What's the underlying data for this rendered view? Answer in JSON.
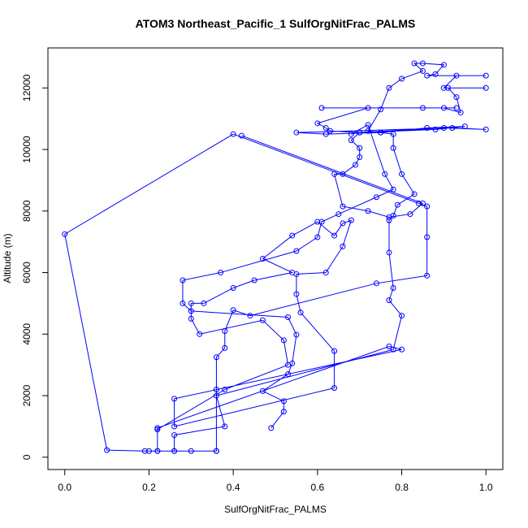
{
  "chart_data": {
    "type": "line",
    "title": "ATOM3 Northeast_Pacific_1 SulfOrgNitFrac_PALMS",
    "xlabel": "SulfOrgNitFrac_PALMS",
    "ylabel": "Altitude (m)",
    "xlim": [
      -0.04,
      1.04
    ],
    "ylim": [
      -400,
      13300
    ],
    "xticks": [
      0.0,
      0.2,
      0.4,
      0.6,
      0.8,
      1.0
    ],
    "xtick_labels": [
      "0.0",
      "0.2",
      "0.4",
      "0.6",
      "0.8",
      "1.0"
    ],
    "yticks": [
      0,
      2000,
      4000,
      6000,
      8000,
      10000,
      12000
    ],
    "ytick_labels": [
      "0",
      "2000",
      "4000",
      "6000",
      "8000",
      "10000",
      "12000"
    ],
    "grid": false,
    "series": [
      {
        "color": "#0000ff",
        "marker": "open-circle",
        "points": [
          [
            0.49,
            950
          ],
          [
            0.52,
            1480
          ],
          [
            0.52,
            1820
          ],
          [
            0.47,
            2150
          ],
          [
            0.53,
            2700
          ],
          [
            0.54,
            3050
          ],
          [
            0.55,
            3980
          ],
          [
            0.53,
            4550
          ],
          [
            0.3,
            4750
          ],
          [
            0.28,
            5000
          ],
          [
            0.28,
            5750
          ],
          [
            0.37,
            6000
          ],
          [
            0.55,
            6700
          ],
          [
            0.6,
            7150
          ],
          [
            0.61,
            7650
          ],
          [
            0.65,
            7900
          ],
          [
            0.74,
            8450
          ],
          [
            0.78,
            8700
          ],
          [
            0.76,
            9200
          ],
          [
            0.72,
            10800
          ],
          [
            0.68,
            10500
          ],
          [
            0.7,
            10550
          ],
          [
            0.9,
            10700
          ],
          [
            1.0,
            10650
          ],
          [
            0.92,
            10700
          ],
          [
            0.55,
            10550
          ],
          [
            0.62,
            10500
          ],
          [
            0.75,
            10550
          ],
          [
            0.86,
            10700
          ],
          [
            0.95,
            10750
          ],
          [
            0.88,
            10650
          ],
          [
            0.7,
            10550
          ],
          [
            0.63,
            10600
          ],
          [
            0.62,
            10700
          ],
          [
            0.6,
            10850
          ],
          [
            0.72,
            11350
          ],
          [
            0.93,
            11350
          ],
          [
            0.61,
            11350
          ],
          [
            0.85,
            11350
          ],
          [
            0.9,
            11350
          ],
          [
            0.94,
            11200
          ],
          [
            0.93,
            11700
          ],
          [
            0.91,
            12000
          ],
          [
            1.0,
            12000
          ],
          [
            0.9,
            12000
          ],
          [
            0.93,
            12400
          ],
          [
            1.0,
            12400
          ],
          [
            0.86,
            12400
          ],
          [
            0.88,
            12450
          ],
          [
            0.9,
            12750
          ],
          [
            0.85,
            12800
          ],
          [
            0.83,
            12800
          ],
          [
            0.85,
            12550
          ],
          [
            0.8,
            12300
          ],
          [
            0.77,
            12000
          ],
          [
            0.75,
            11300
          ],
          [
            0.72,
            10600
          ],
          [
            0.78,
            10500
          ],
          [
            0.78,
            10050
          ],
          [
            0.8,
            9200
          ],
          [
            0.83,
            8550
          ],
          [
            0.79,
            8200
          ],
          [
            0.78,
            7850
          ],
          [
            0.77,
            7700
          ],
          [
            0.77,
            6650
          ],
          [
            0.78,
            5500
          ],
          [
            0.77,
            5100
          ],
          [
            0.8,
            4600
          ],
          [
            0.78,
            3500
          ],
          [
            0.36,
            2000
          ],
          [
            0.38,
            1000
          ],
          [
            0.26,
            720
          ],
          [
            0.26,
            200
          ],
          [
            0.3,
            200
          ],
          [
            0.2,
            200
          ],
          [
            0.19,
            200
          ],
          [
            0.1,
            230
          ],
          [
            0.0,
            7250
          ],
          [
            0.4,
            10500
          ],
          [
            0.84,
            8250
          ],
          [
            0.86,
            8150
          ],
          [
            0.86,
            7150
          ],
          [
            0.86,
            5900
          ],
          [
            0.74,
            5650
          ],
          [
            0.44,
            4600
          ],
          [
            0.4,
            4780
          ],
          [
            0.38,
            4100
          ],
          [
            0.38,
            3550
          ],
          [
            0.36,
            3250
          ],
          [
            0.36,
            2200
          ],
          [
            0.36,
            200
          ],
          [
            0.22,
            200
          ],
          [
            0.22,
            950
          ],
          [
            0.77,
            3600
          ],
          [
            0.8,
            3500
          ],
          [
            0.26,
            1900
          ],
          [
            0.26,
            1000
          ],
          [
            0.64,
            2250
          ],
          [
            0.64,
            3450
          ],
          [
            0.56,
            4700
          ],
          [
            0.55,
            5300
          ],
          [
            0.55,
            5950
          ],
          [
            0.62,
            6000
          ],
          [
            0.66,
            6850
          ],
          [
            0.68,
            7700
          ],
          [
            0.66,
            7600
          ],
          [
            0.64,
            7200
          ],
          [
            0.6,
            7650
          ],
          [
            0.54,
            7200
          ],
          [
            0.47,
            6450
          ],
          [
            0.54,
            6000
          ],
          [
            0.45,
            5750
          ],
          [
            0.4,
            5500
          ],
          [
            0.33,
            5000
          ],
          [
            0.3,
            5000
          ],
          [
            0.3,
            4500
          ],
          [
            0.32,
            4000
          ],
          [
            0.47,
            4450
          ],
          [
            0.52,
            3800
          ],
          [
            0.53,
            3000
          ],
          [
            0.38,
            2200
          ],
          [
            0.22,
            900
          ],
          [
            0.22,
            200
          ],
          [
            0.26,
            200
          ],
          [
            0.36,
            200
          ]
        ]
      },
      {
        "color": "#0000ff",
        "marker": "open-circle",
        "points": [
          [
            0.42,
            10450
          ],
          [
            0.85,
            8250
          ],
          [
            0.82,
            7900
          ],
          [
            0.77,
            7800
          ],
          [
            0.72,
            8000
          ],
          [
            0.66,
            8150
          ],
          [
            0.64,
            9200
          ],
          [
            0.66,
            9200
          ],
          [
            0.69,
            9500
          ],
          [
            0.7,
            9750
          ],
          [
            0.7,
            10050
          ],
          [
            0.68,
            10300
          ],
          [
            0.7,
            10550
          ],
          [
            0.75,
            10550
          ]
        ]
      }
    ]
  }
}
